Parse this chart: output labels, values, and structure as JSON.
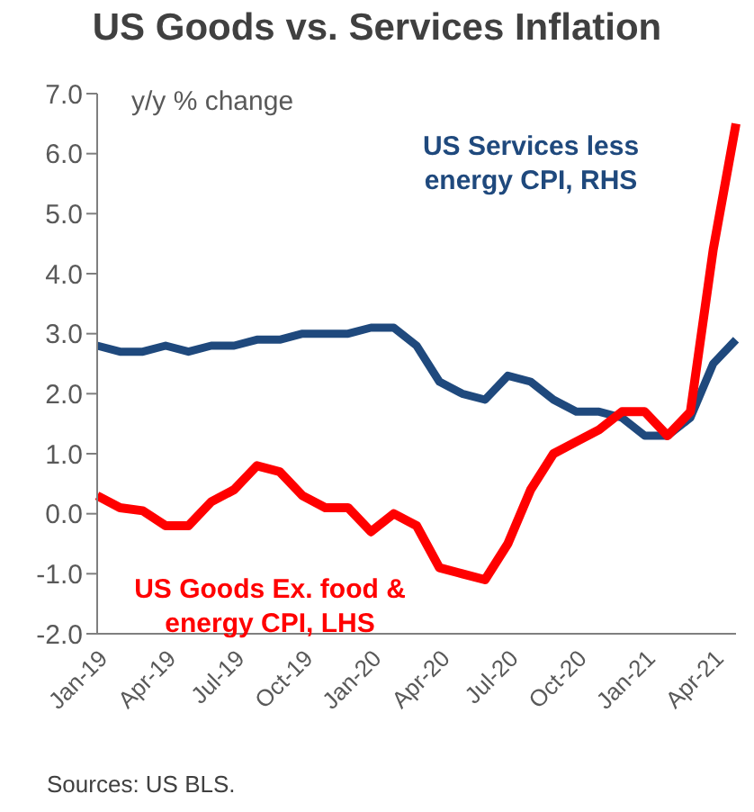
{
  "chart_data": {
    "type": "line",
    "title": "US Goods vs. Services Inflation",
    "ylabel": "y/y % change",
    "categories": [
      "Jan-19",
      null,
      null,
      "Apr-19",
      null,
      null,
      "Jul-19",
      null,
      null,
      "Oct-19",
      null,
      null,
      "Jan-20",
      null,
      null,
      "Apr-20",
      null,
      null,
      "Jul-20",
      null,
      null,
      "Oct-20",
      null,
      null,
      "Jan-21",
      null,
      null,
      "Apr-21",
      null
    ],
    "series": [
      {
        "name": "US Services less energy CPI, RHS",
        "color": "#1f497d",
        "values": [
          2.8,
          2.7,
          2.7,
          2.8,
          2.7,
          2.8,
          2.8,
          2.9,
          2.9,
          3.0,
          3.0,
          3.0,
          3.1,
          3.1,
          2.8,
          2.2,
          2.0,
          1.9,
          2.3,
          2.2,
          1.9,
          1.7,
          1.7,
          1.6,
          1.3,
          1.3,
          1.6,
          2.5,
          2.9
        ]
      },
      {
        "name": "US Goods Ex. food & energy CPI, LHS",
        "color": "#ff0000",
        "values": [
          0.3,
          0.1,
          0.05,
          -0.2,
          -0.2,
          0.2,
          0.4,
          0.8,
          0.7,
          0.3,
          0.1,
          0.1,
          -0.3,
          0.0,
          -0.2,
          -0.9,
          -1.0,
          -1.1,
          -0.5,
          0.4,
          1.0,
          1.2,
          1.4,
          1.7,
          1.7,
          1.3,
          1.7,
          4.4,
          6.5
        ]
      }
    ],
    "ylim": [
      -2,
      7
    ],
    "yticks": [
      {
        "value": -2,
        "label": "-2.0"
      },
      {
        "value": -1,
        "label": "-1.0"
      },
      {
        "value": 0,
        "label": "0.0"
      },
      {
        "value": 1,
        "label": "1.0"
      },
      {
        "value": 2,
        "label": "2.0"
      },
      {
        "value": 3,
        "label": "3.0"
      },
      {
        "value": 4,
        "label": "4.0"
      },
      {
        "value": 5,
        "label": "5.0"
      },
      {
        "value": 6,
        "label": "6.0"
      },
      {
        "value": 7,
        "label": "7.0"
      }
    ],
    "grid": false,
    "legend": false,
    "marker": "none",
    "line_style": "solid",
    "annotations": [
      "Sources: US BLS."
    ]
  }
}
